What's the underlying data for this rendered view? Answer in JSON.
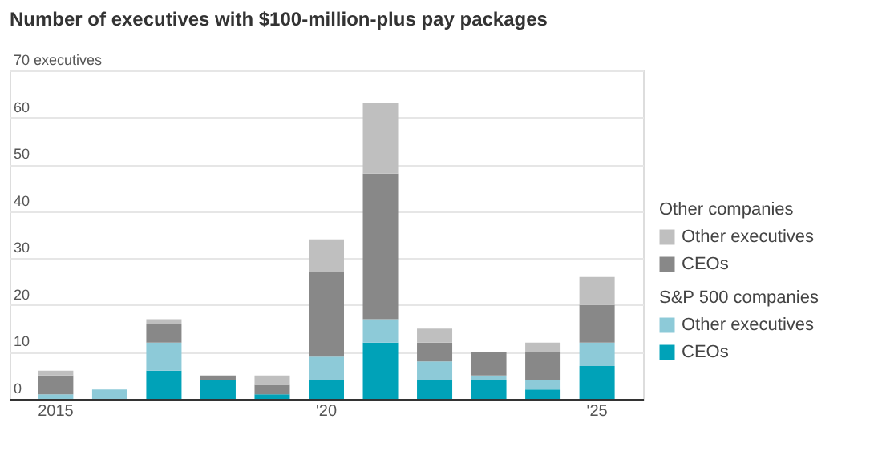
{
  "chart_data": {
    "type": "bar",
    "stacked": true,
    "title": "Number of executives with $100-million-plus pay packages",
    "categories": [
      "2015",
      null,
      null,
      null,
      null,
      "'20",
      null,
      null,
      null,
      null,
      "'25"
    ],
    "series": [
      {
        "name": "CEOs",
        "color": "#00a2b8",
        "values": [
          0,
          0,
          6,
          4,
          1,
          4,
          12,
          4,
          4,
          2,
          7
        ]
      },
      {
        "name": "Other executives",
        "color": "#8dcad8",
        "values": [
          1,
          2,
          6,
          0,
          0,
          5,
          5,
          4,
          1,
          2,
          5
        ]
      },
      {
        "name": "CEOs",
        "color": "#888888",
        "values": [
          4,
          0,
          4,
          1,
          2,
          18,
          31,
          4,
          5,
          6,
          8
        ]
      },
      {
        "name": "Other executives",
        "color": "#bfbfbf",
        "values": [
          1,
          0,
          1,
          0,
          2,
          7,
          15,
          3,
          0,
          2,
          6
        ]
      }
    ],
    "annotations": [
      "S&P 500 companies",
      "Other companies"
    ],
    "ylim": [
      0,
      70
    ],
    "yticks": [
      0,
      10,
      20,
      30,
      40,
      50,
      60,
      {
        "value": 70,
        "label": "70 executives"
      }
    ],
    "grid": "y",
    "legend": "right"
  }
}
